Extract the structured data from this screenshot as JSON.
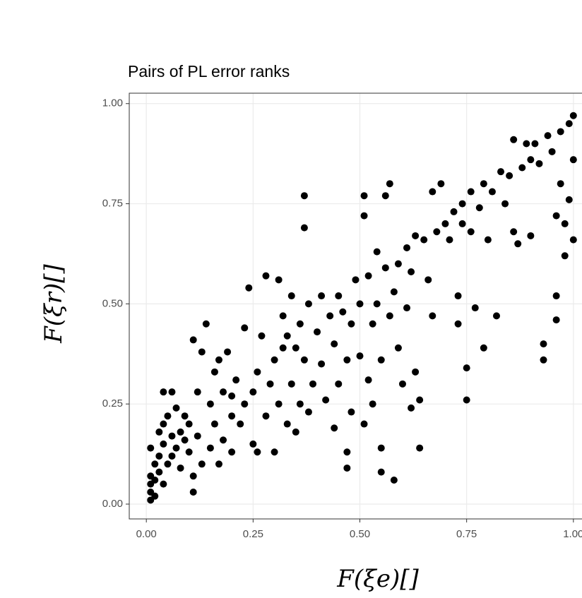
{
  "chart_data": {
    "type": "scatter",
    "title": "Pairs of PL error ranks",
    "x_label": "F(ξe)[]",
    "y_label": "F(ξr)[]",
    "color": "#000000",
    "grid": true,
    "xlim": [
      -0.04,
      1.04
    ],
    "ylim": [
      -0.037,
      1.026
    ],
    "xticks": [
      {
        "value": 0,
        "label": "0.00"
      },
      {
        "value": 0.25,
        "label": "0.25"
      },
      {
        "value": 0.5,
        "label": "0.50"
      },
      {
        "value": 0.75,
        "label": "0.75"
      },
      {
        "value": 1,
        "label": "1.00"
      }
    ],
    "yticks": [
      {
        "value": 0,
        "label": "0.00"
      },
      {
        "value": 0.25,
        "label": "0.25"
      },
      {
        "value": 0.5,
        "label": "0.50"
      },
      {
        "value": 0.75,
        "label": "0.75"
      },
      {
        "value": 1,
        "label": "1.00"
      }
    ],
    "x": [
      0.01,
      0.01,
      0.01,
      0.01,
      0.01,
      0.02,
      0.02,
      0.02,
      0.03,
      0.03,
      0.03,
      0.04,
      0.04,
      0.04,
      0.04,
      0.05,
      0.05,
      0.06,
      0.06,
      0.06,
      0.07,
      0.07,
      0.08,
      0.08,
      0.09,
      0.09,
      0.1,
      0.1,
      0.11,
      0.11,
      0.11,
      0.12,
      0.12,
      0.13,
      0.13,
      0.14,
      0.15,
      0.15,
      0.16,
      0.16,
      0.17,
      0.17,
      0.18,
      0.18,
      0.19,
      0.2,
      0.2,
      0.2,
      0.21,
      0.22,
      0.23,
      0.23,
      0.24,
      0.25,
      0.25,
      0.26,
      0.26,
      0.27,
      0.28,
      0.28,
      0.29,
      0.3,
      0.3,
      0.31,
      0.31,
      0.32,
      0.32,
      0.33,
      0.33,
      0.34,
      0.34,
      0.35,
      0.35,
      0.36,
      0.36,
      0.37,
      0.37,
      0.37,
      0.38,
      0.38,
      0.39,
      0.4,
      0.41,
      0.41,
      0.42,
      0.43,
      0.44,
      0.44,
      0.45,
      0.45,
      0.46,
      0.47,
      0.47,
      0.47,
      0.48,
      0.48,
      0.49,
      0.5,
      0.5,
      0.51,
      0.51,
      0.51,
      0.52,
      0.52,
      0.53,
      0.53,
      0.54,
      0.54,
      0.55,
      0.55,
      0.55,
      0.56,
      0.56,
      0.57,
      0.57,
      0.58,
      0.58,
      0.59,
      0.59,
      0.6,
      0.61,
      0.61,
      0.62,
      0.62,
      0.63,
      0.63,
      0.64,
      0.64,
      0.65,
      0.66,
      0.67,
      0.67,
      0.68,
      0.69,
      0.7,
      0.71,
      0.72,
      0.73,
      0.73,
      0.74,
      0.74,
      0.75,
      0.75,
      0.76,
      0.76,
      0.77,
      0.78,
      0.79,
      0.79,
      0.8,
      0.81,
      0.82,
      0.83,
      0.84,
      0.85,
      0.86,
      0.86,
      0.87,
      0.88,
      0.89,
      0.9,
      0.9,
      0.91,
      0.92,
      0.93,
      0.93,
      0.94,
      0.95,
      0.96,
      0.96,
      0.96,
      0.97,
      0.97,
      0.98,
      0.98,
      0.99,
      0.99,
      1.0,
      1.0,
      1.0
    ],
    "values": [
      0.01,
      0.03,
      0.05,
      0.07,
      0.14,
      0.02,
      0.06,
      0.1,
      0.08,
      0.12,
      0.18,
      0.05,
      0.15,
      0.2,
      0.28,
      0.1,
      0.22,
      0.12,
      0.17,
      0.28,
      0.14,
      0.24,
      0.09,
      0.18,
      0.16,
      0.22,
      0.13,
      0.2,
      0.03,
      0.07,
      0.41,
      0.17,
      0.28,
      0.1,
      0.38,
      0.45,
      0.14,
      0.25,
      0.2,
      0.33,
      0.1,
      0.36,
      0.16,
      0.28,
      0.38,
      0.13,
      0.22,
      0.27,
      0.31,
      0.2,
      0.25,
      0.44,
      0.54,
      0.28,
      0.15,
      0.13,
      0.33,
      0.42,
      0.57,
      0.22,
      0.3,
      0.36,
      0.13,
      0.56,
      0.25,
      0.39,
      0.47,
      0.2,
      0.42,
      0.3,
      0.52,
      0.39,
      0.18,
      0.25,
      0.45,
      0.77,
      0.69,
      0.36,
      0.23,
      0.5,
      0.3,
      0.43,
      0.35,
      0.52,
      0.26,
      0.47,
      0.19,
      0.4,
      0.52,
      0.3,
      0.48,
      0.09,
      0.13,
      0.36,
      0.45,
      0.23,
      0.56,
      0.37,
      0.5,
      0.72,
      0.77,
      0.2,
      0.31,
      0.57,
      0.45,
      0.25,
      0.63,
      0.5,
      0.08,
      0.14,
      0.36,
      0.77,
      0.59,
      0.8,
      0.47,
      0.06,
      0.53,
      0.39,
      0.6,
      0.3,
      0.64,
      0.49,
      0.24,
      0.58,
      0.67,
      0.33,
      0.14,
      0.26,
      0.66,
      0.56,
      0.78,
      0.47,
      0.68,
      0.8,
      0.7,
      0.66,
      0.73,
      0.52,
      0.45,
      0.75,
      0.7,
      0.34,
      0.26,
      0.78,
      0.68,
      0.49,
      0.74,
      0.39,
      0.8,
      0.66,
      0.78,
      0.47,
      0.83,
      0.75,
      0.82,
      0.91,
      0.68,
      0.65,
      0.84,
      0.9,
      0.86,
      0.67,
      0.9,
      0.85,
      0.36,
      0.4,
      0.92,
      0.88,
      0.72,
      0.46,
      0.52,
      0.93,
      0.8,
      0.62,
      0.7,
      0.95,
      0.76,
      0.97,
      0.86,
      0.66
    ]
  }
}
